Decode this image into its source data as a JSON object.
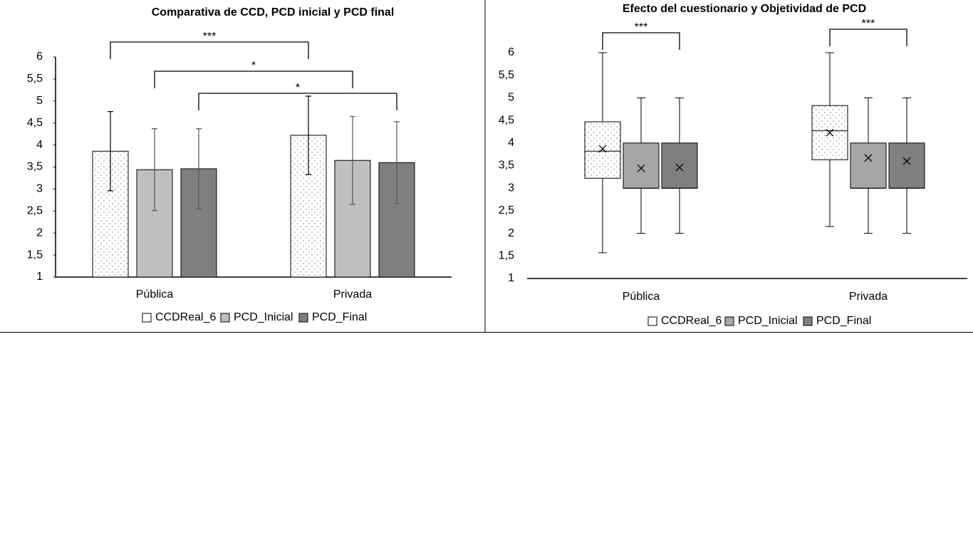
{
  "chart_data": [
    {
      "type": "bar",
      "title": "Comparativa de CCD, PCD inicial y PCD final",
      "categories": [
        "Pública",
        "Privada"
      ],
      "series": [
        {
          "name": "CCDReal_6",
          "color": "#ffffff",
          "pattern": "dots",
          "values": [
            3.86,
            4.22
          ],
          "errors": [
            0.9,
            0.89
          ]
        },
        {
          "name": "PCD_Inicial",
          "color": "#bfbfbf",
          "values": [
            3.44,
            3.65
          ],
          "errors": [
            0.93,
            1.0
          ]
        },
        {
          "name": "PCD_Final",
          "color": "#7f7f7f",
          "values": [
            3.46,
            3.6
          ],
          "errors": [
            0.91,
            0.93
          ]
        }
      ],
      "ylim": [
        1,
        6
      ],
      "yticks": [
        1,
        {
          "value": 1.5,
          "label": "1,5"
        },
        2,
        {
          "value": 2.5,
          "label": "2,5"
        },
        3,
        {
          "value": 3.5,
          "label": "3,5"
        },
        4,
        {
          "value": 4.5,
          "label": "4,5"
        },
        5,
        {
          "value": 5.5,
          "label": "5,5"
        },
        6
      ],
      "annotations": [
        {
          "text": "***",
          "from": [
            "Pública",
            "CCDReal_6"
          ],
          "to": [
            "Privada",
            "CCDReal_6"
          ]
        },
        {
          "text": "*",
          "from": [
            "Pública",
            "PCD_Inicial"
          ],
          "to": [
            "Privada",
            "PCD_Inicial"
          ]
        },
        {
          "text": "*",
          "from": [
            "Pública",
            "PCD_Final"
          ],
          "to": [
            "Privada",
            "PCD_Final"
          ]
        }
      ],
      "legend": "bottom"
    },
    {
      "type": "box",
      "title": "Efecto del cuestionario y Objetividad de PCD",
      "categories": [
        "Pública",
        "Privada"
      ],
      "series": [
        {
          "name": "CCDReal_6",
          "color": "#ffffff",
          "pattern": "dots",
          "boxes": [
            {
              "min": 1.57,
              "q1": 3.22,
              "median": 3.82,
              "q3": 4.47,
              "max": 6,
              "mean": 3.87
            },
            {
              "min": 2.15,
              "q1": 3.63,
              "median": 4.27,
              "q3": 4.83,
              "max": 6,
              "mean": 4.23
            }
          ]
        },
        {
          "name": "PCD_Inicial",
          "color": "#a6a6a6",
          "boxes": [
            {
              "min": 2,
              "q1": 3,
              "median": 3,
              "q3": 4,
              "max": 5,
              "mean": 3.44
            },
            {
              "min": 2,
              "q1": 3,
              "median": 3,
              "q3": 4,
              "max": 5,
              "mean": 3.67
            }
          ]
        },
        {
          "name": "PCD_Final",
          "color": "#7f7f7f",
          "boxes": [
            {
              "min": 2,
              "q1": 3,
              "median": 3,
              "q3": 4,
              "max": 5,
              "mean": 3.46
            },
            {
              "min": 2,
              "q1": 3,
              "median": 3,
              "q3": 4,
              "max": 5,
              "mean": 3.6
            }
          ]
        }
      ],
      "ylim": [
        1,
        6
      ],
      "yticks": [
        1,
        {
          "value": 1.5,
          "label": "1,5"
        },
        2,
        {
          "value": 2.5,
          "label": "2,5"
        },
        3,
        {
          "value": 3.5,
          "label": "3,5"
        },
        4,
        {
          "value": 4.5,
          "label": "4,5"
        },
        5,
        {
          "value": 5.5,
          "label": "5,5"
        },
        6
      ],
      "annotations": [
        {
          "text": "***",
          "from": [
            "Pública",
            "CCDReal_6"
          ],
          "to": [
            "Pública",
            "PCD_Final"
          ]
        },
        {
          "text": "***",
          "from": [
            "Privada",
            "CCDReal_6"
          ],
          "to": [
            "Privada",
            "PCD_Final"
          ]
        }
      ],
      "legend": "bottom"
    }
  ]
}
